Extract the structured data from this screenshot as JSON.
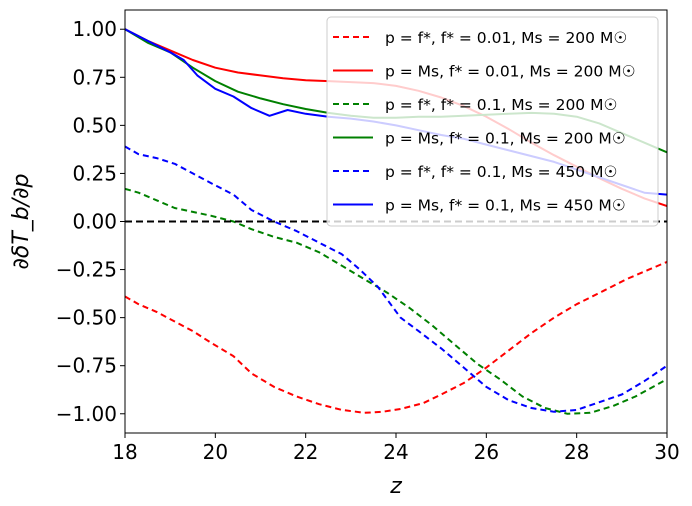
{
  "chart_data": {
    "type": "line",
    "title": "",
    "xlabel": "z",
    "ylabel": "∂δT_b/∂p",
    "xlim": [
      18,
      30
    ],
    "ylim": [
      -1.1,
      1.1
    ],
    "xticks": [
      18,
      20,
      22,
      24,
      26,
      28,
      30
    ],
    "yticks": [
      -1.0,
      -0.75,
      -0.5,
      -0.25,
      0.0,
      0.25,
      0.5,
      0.75,
      1.0
    ],
    "xtick_labels": [
      "18",
      "20",
      "22",
      "24",
      "26",
      "28",
      "30"
    ],
    "ytick_labels": [
      "−1.00",
      "−0.75",
      "−0.50",
      "−0.25",
      "0.00",
      "0.25",
      "0.50",
      "0.75",
      "1.00"
    ],
    "hline": {
      "y": 0.0,
      "color": "#000000",
      "style": "dashed"
    },
    "legend_position": "upper-right",
    "series": [
      {
        "name": "p = f*, f* = 0.01, Ms = 200 M☉",
        "color": "#ff0000",
        "style": "dashed",
        "x": [
          18,
          18.3,
          18.7,
          19.1,
          19.5,
          19.9,
          20.4,
          20.8,
          21.3,
          21.8,
          22.3,
          22.8,
          23.3,
          23.7,
          24.1,
          24.6,
          25,
          25.5,
          26,
          26.5,
          27,
          27.5,
          28,
          28.6,
          29.1,
          29.6,
          30
        ],
        "y": [
          -0.39,
          -0.43,
          -0.47,
          -0.52,
          -0.57,
          -0.63,
          -0.7,
          -0.79,
          -0.86,
          -0.91,
          -0.95,
          -0.98,
          -0.995,
          -0.99,
          -0.975,
          -0.945,
          -0.9,
          -0.84,
          -0.76,
          -0.67,
          -0.58,
          -0.5,
          -0.43,
          -0.36,
          -0.3,
          -0.25,
          -0.21
        ]
      },
      {
        "name": "p = Ms, f* = 0.01, Ms = 200 M☉",
        "color": "#ff0000",
        "style": "solid",
        "x": [
          18,
          18.5,
          19,
          19.5,
          20,
          20.5,
          21,
          21.5,
          22,
          22.5,
          23,
          23.5,
          24,
          24.5,
          25,
          25.5,
          26,
          26.5,
          27,
          27.5,
          28,
          28.5,
          29,
          29.5,
          30
        ],
        "y": [
          1.0,
          0.94,
          0.89,
          0.84,
          0.8,
          0.775,
          0.76,
          0.745,
          0.735,
          0.73,
          0.725,
          0.72,
          0.705,
          0.68,
          0.645,
          0.6,
          0.545,
          0.48,
          0.41,
          0.345,
          0.285,
          0.225,
          0.17,
          0.12,
          0.08
        ]
      },
      {
        "name": "p = f*, f* = 0.1, Ms = 200 M☉",
        "color": "#008000",
        "style": "dashed",
        "x": [
          18,
          18.3,
          18.7,
          19.1,
          19.5,
          19.9,
          20.4,
          20.8,
          21.3,
          21.8,
          22.3,
          22.8,
          23.3,
          23.8,
          24.3,
          24.8,
          25.3,
          25.8,
          26.3,
          26.8,
          27.3,
          27.8,
          28.3,
          28.8,
          29.3,
          30
        ],
        "y": [
          0.17,
          0.15,
          0.11,
          0.07,
          0.05,
          0.03,
          0.0,
          -0.04,
          -0.08,
          -0.11,
          -0.16,
          -0.23,
          -0.3,
          -0.37,
          -0.45,
          -0.54,
          -0.64,
          -0.74,
          -0.82,
          -0.91,
          -0.97,
          -1.0,
          -0.995,
          -0.96,
          -0.91,
          -0.82
        ]
      },
      {
        "name": "p = Ms, f* = 0.1, Ms = 200 M☉",
        "color": "#008000",
        "style": "solid",
        "x": [
          18,
          18.5,
          19,
          19.5,
          20,
          20.5,
          21,
          21.5,
          22,
          22.5,
          23,
          23.5,
          24,
          24.5,
          25,
          25.5,
          26,
          26.5,
          27,
          27.5,
          28,
          28.5,
          29,
          29.5,
          30
        ],
        "y": [
          1.0,
          0.93,
          0.88,
          0.8,
          0.73,
          0.675,
          0.64,
          0.61,
          0.585,
          0.565,
          0.55,
          0.54,
          0.54,
          0.545,
          0.545,
          0.55,
          0.555,
          0.56,
          0.565,
          0.56,
          0.545,
          0.51,
          0.46,
          0.41,
          0.36
        ]
      },
      {
        "name": "p = f*, f* = 0.1, Ms = 450 M☉",
        "color": "#0000ff",
        "style": "dashed",
        "x": [
          18,
          18.3,
          18.7,
          19.1,
          19.5,
          19.9,
          20.4,
          20.8,
          21.3,
          21.8,
          22.3,
          22.8,
          23.2,
          23.6,
          24.1,
          24.5,
          25,
          25.5,
          26,
          26.5,
          27,
          27.5,
          28,
          28.5,
          29,
          29.5,
          30
        ],
        "y": [
          0.39,
          0.35,
          0.33,
          0.3,
          0.25,
          0.2,
          0.14,
          0.06,
          0.0,
          -0.05,
          -0.11,
          -0.17,
          -0.25,
          -0.34,
          -0.5,
          -0.57,
          -0.66,
          -0.76,
          -0.86,
          -0.93,
          -0.97,
          -0.99,
          -0.98,
          -0.94,
          -0.9,
          -0.83,
          -0.75
        ]
      },
      {
        "name": "p = Ms, f* = 0.1, Ms = 450 M☉",
        "color": "#0000ff",
        "style": "solid",
        "x": [
          18,
          18.5,
          19,
          19.3,
          19.6,
          20,
          20.4,
          20.8,
          21.2,
          21.6,
          22,
          22.5,
          23,
          23.5,
          24,
          24.5,
          25,
          25.5,
          26,
          26.5,
          27,
          27.5,
          28,
          28.5,
          29,
          29.5,
          30
        ],
        "y": [
          1.0,
          0.94,
          0.88,
          0.84,
          0.76,
          0.69,
          0.65,
          0.59,
          0.55,
          0.58,
          0.56,
          0.545,
          0.535,
          0.52,
          0.5,
          0.475,
          0.45,
          0.43,
          0.4,
          0.37,
          0.34,
          0.31,
          0.27,
          0.23,
          0.19,
          0.15,
          0.14
        ]
      }
    ],
    "legend": [
      {
        "label": "p = f*, f* = 0.01, Ms = 200 M☉",
        "color": "#ff0000",
        "style": "dashed"
      },
      {
        "label": "p = Ms, f* = 0.01, Ms = 200 M☉",
        "color": "#ff0000",
        "style": "solid"
      },
      {
        "label": "p = f*, f* = 0.1, Ms = 200 M☉",
        "color": "#008000",
        "style": "dashed"
      },
      {
        "label": "p = Ms, f* = 0.1, Ms = 200 M☉",
        "color": "#008000",
        "style": "solid"
      },
      {
        "label": "p = f*, f* = 0.1, Ms = 450 M☉",
        "color": "#0000ff",
        "style": "dashed"
      },
      {
        "label": "p = Ms, f* = 0.1, Ms = 450 M☉",
        "color": "#0000ff",
        "style": "solid"
      }
    ]
  }
}
